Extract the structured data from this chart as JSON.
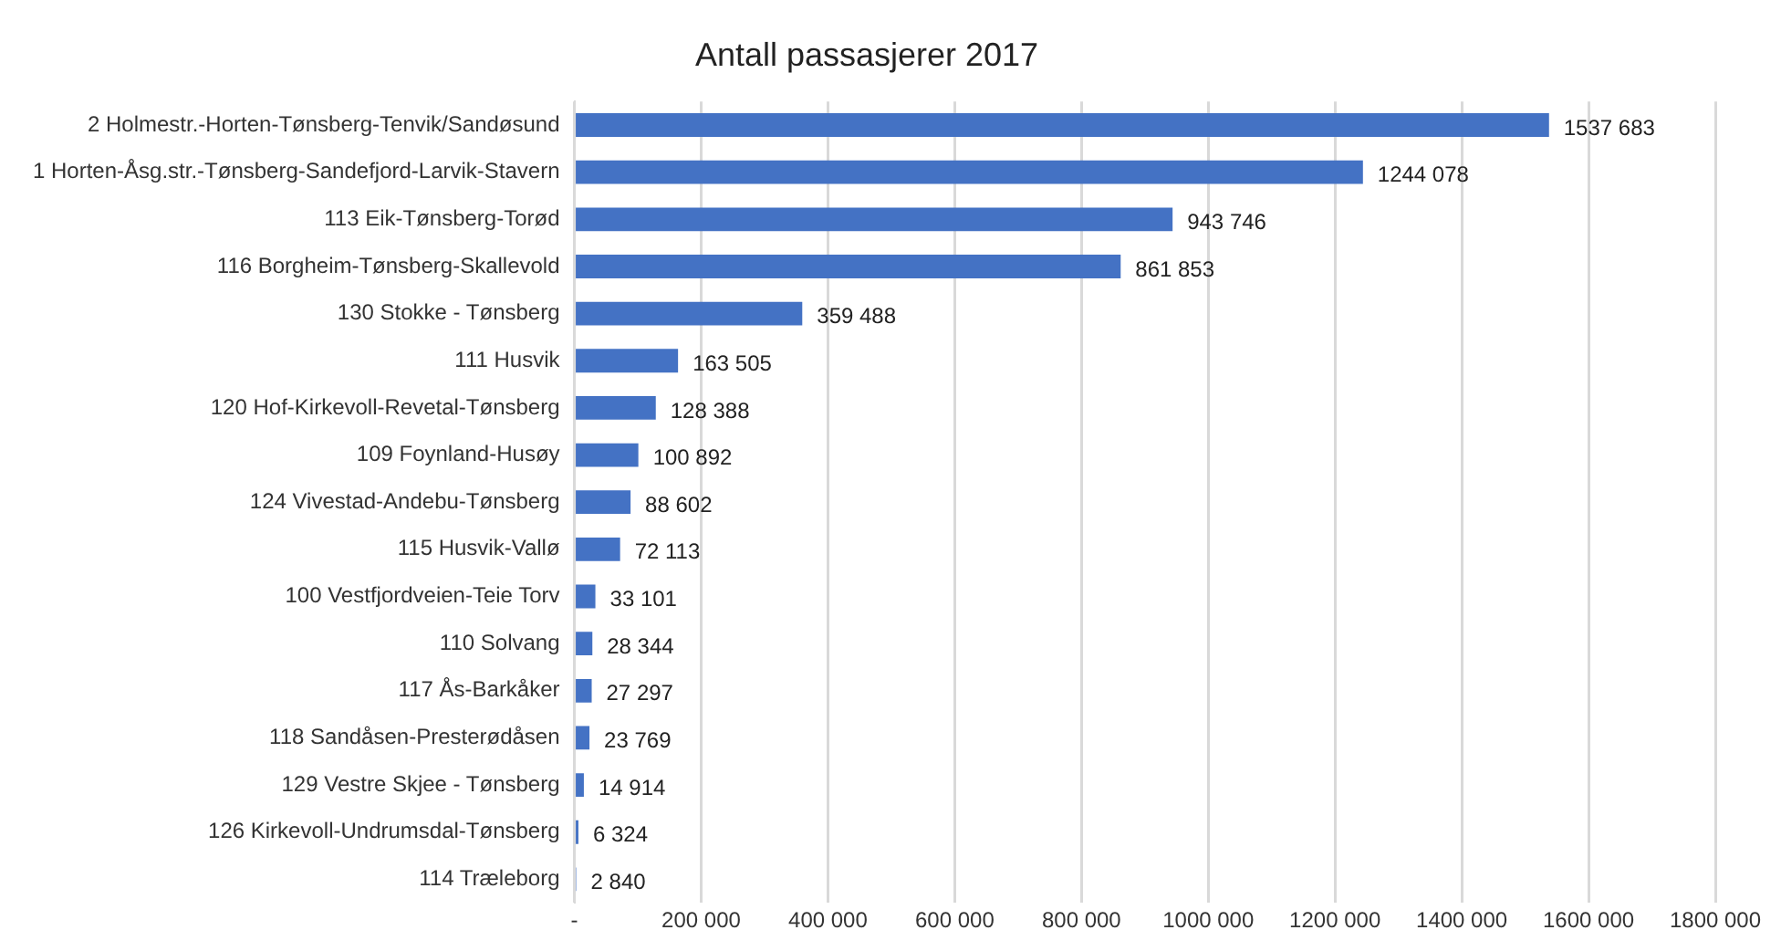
{
  "chart_data": {
    "type": "bar",
    "orientation": "horizontal",
    "title": "Antall passasjerer 2017",
    "categories": [
      "2 Holmestr.-Horten-Tønsberg-Tenvik/Sandøsund",
      "1 Horten-Åsg.str.-Tønsberg-Sandefjord-Larvik-Stavern",
      "113 Eik-Tønsberg-Torød",
      "116 Borgheim-Tønsberg-Skallevold",
      "130 Stokke - Tønsberg",
      "111 Husvik",
      "120 Hof-Kirkevoll-Revetal-Tønsberg",
      "109 Foynland-Husøy",
      "124 Vivestad-Andebu-Tønsberg",
      "115 Husvik-Vallø",
      "100 Vestfjordveien-Teie Torv",
      "110 Solvang",
      "117 Ås-Barkåker",
      "118 Sandåsen-Presterødåsen",
      "129 Vestre Skjee - Tønsberg",
      "126 Kirkevoll-Undrumsdal-Tønsberg",
      "114 Træleborg"
    ],
    "values": [
      1537683,
      1244078,
      943746,
      861853,
      359488,
      163505,
      128388,
      100892,
      88602,
      72113,
      33101,
      28344,
      27297,
      23769,
      14914,
      6324,
      2840
    ],
    "value_labels": [
      "1537 683",
      "1244 078",
      "943 746",
      "861 853",
      "359 488",
      "163 505",
      "128 388",
      "100 892",
      "88 602",
      "72 113",
      "33 101",
      "28 344",
      "27 297",
      "23 769",
      "14 914",
      "6 324",
      "2 840"
    ],
    "color": "#4472c4",
    "xlim": [
      0,
      1800000
    ],
    "xticks": [
      {
        "value": 0,
        "label": "-"
      },
      {
        "value": 200000,
        "label": "200 000"
      },
      {
        "value": 400000,
        "label": "400 000"
      },
      {
        "value": 600000,
        "label": "600 000"
      },
      {
        "value": 800000,
        "label": "800 000"
      },
      {
        "value": 1000000,
        "label": "1000 000"
      },
      {
        "value": 1200000,
        "label": "1200 000"
      },
      {
        "value": 1400000,
        "label": "1400 000"
      },
      {
        "value": 1600000,
        "label": "1600 000"
      },
      {
        "value": 1800000,
        "label": "1800 000"
      }
    ],
    "grid": "x",
    "legend": false
  }
}
